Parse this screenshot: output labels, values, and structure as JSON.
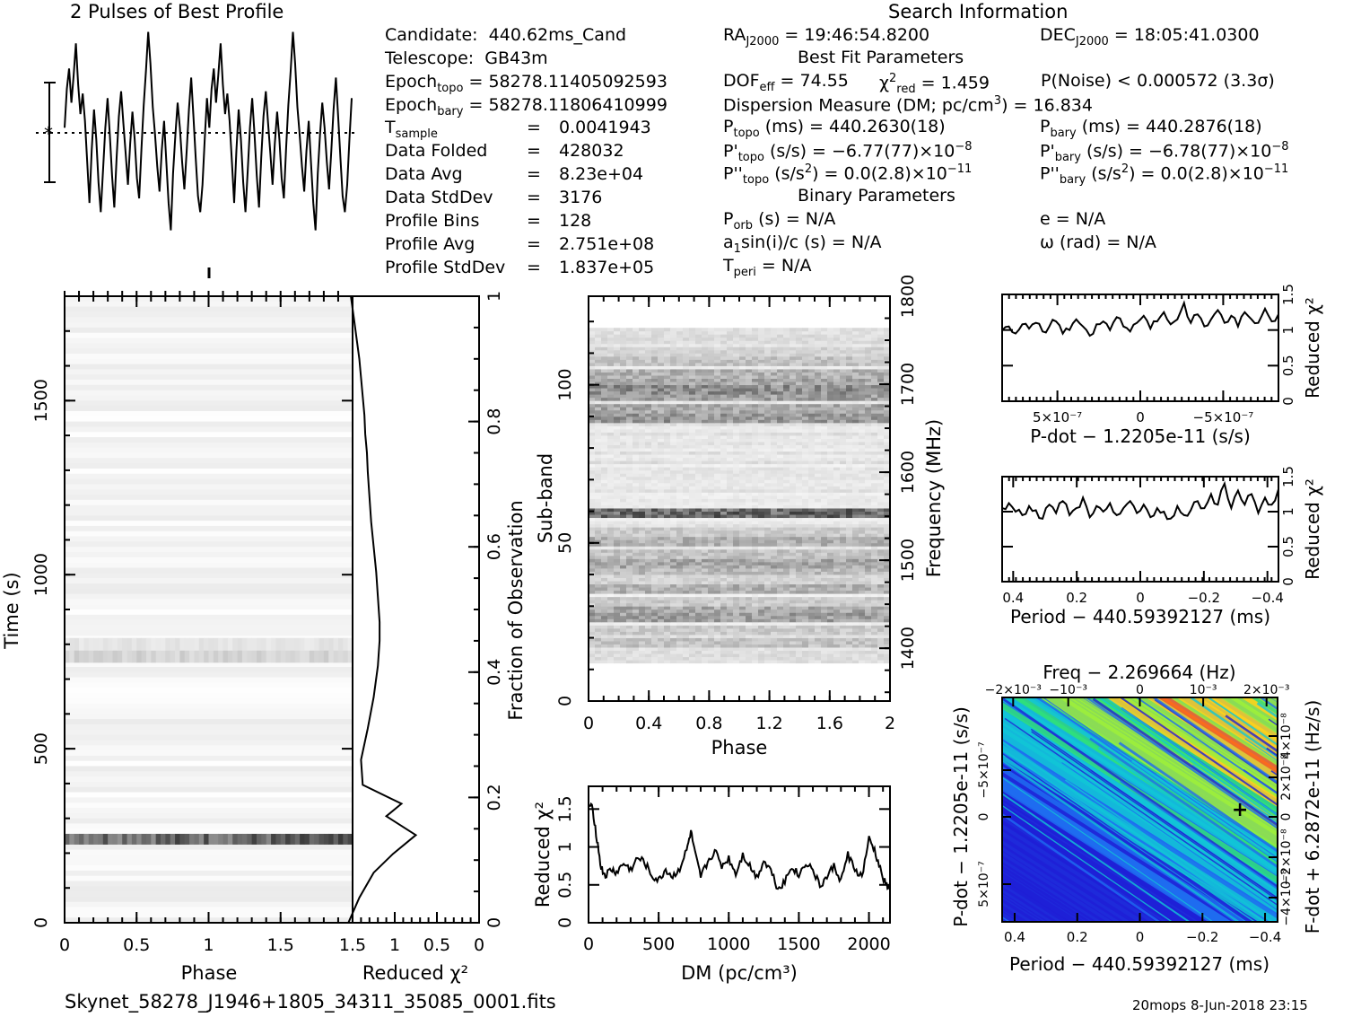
{
  "chart_data": [
    {
      "id": "profile",
      "type": "line",
      "title": "2 Pulses of Best Profile",
      "xlabel": "",
      "ylabel": "",
      "pulses": 2,
      "bins": 128,
      "values": [
        0.55,
        0.72,
        0.81,
        0.66,
        0.78,
        0.92,
        0.74,
        0.61,
        0.7,
        0.58,
        0.4,
        0.22,
        0.45,
        0.63,
        0.5,
        0.31,
        0.18,
        0.36,
        0.55,
        0.68,
        0.52,
        0.34,
        0.2,
        0.42,
        0.6,
        0.71,
        0.57,
        0.44,
        0.3,
        0.48,
        0.62,
        0.5,
        0.33,
        0.24,
        0.46,
        0.65,
        0.8,
        0.97,
        0.83,
        0.64,
        0.52,
        0.38,
        0.27,
        0.45,
        0.58,
        0.4,
        0.22,
        0.1,
        0.35,
        0.52,
        0.66,
        0.55,
        0.4,
        0.28,
        0.45,
        0.63,
        0.77,
        0.6,
        0.42,
        0.25,
        0.18,
        0.3,
        0.5,
        0.68
      ]
    },
    {
      "id": "time-phase",
      "type": "heatmap",
      "xlabel": "Phase",
      "ylabel": "Time (s)",
      "xlim": [
        0,
        2
      ],
      "ylim": [
        0,
        1800
      ],
      "xticks": [
        "0",
        "0.5",
        "1",
        "1.5"
      ],
      "yticks": [
        "0",
        "500",
        "1000",
        "1500"
      ],
      "dark_rows_s": [
        {
          "t": 240,
          "level": 0.9
        },
        {
          "t": 765,
          "level": 0.25
        },
        {
          "t": 800,
          "level": 0.15
        }
      ]
    },
    {
      "id": "reduced-chi2-vs-time",
      "type": "line",
      "xlabel": "Reduced χ²",
      "ylabel": "Fraction of Observation",
      "xlim": [
        1.5,
        0
      ],
      "ylim": [
        0,
        1
      ],
      "xticks": [
        "1.5",
        "1",
        "0.5",
        "0"
      ],
      "yticks": [
        "0",
        "0.2",
        "0.4",
        "0.6",
        "0.8",
        "1"
      ],
      "x": [
        1.55,
        1.42,
        1.25,
        1.02,
        0.75,
        1.1,
        0.92,
        1.38,
        1.4,
        1.32,
        1.25,
        1.2,
        1.18,
        1.18,
        1.2,
        1.22,
        1.25,
        1.28,
        1.3,
        1.32,
        1.33,
        1.35,
        1.36,
        1.38,
        1.4,
        1.42,
        1.45,
        1.48,
        1.5,
        1.52
      ],
      "y": [
        0.0,
        0.04,
        0.08,
        0.11,
        0.14,
        0.17,
        0.19,
        0.22,
        0.26,
        0.31,
        0.36,
        0.41,
        0.45,
        0.48,
        0.52,
        0.56,
        0.6,
        0.64,
        0.68,
        0.72,
        0.75,
        0.78,
        0.81,
        0.84,
        0.87,
        0.9,
        0.93,
        0.96,
        0.98,
        1.0
      ]
    },
    {
      "id": "subband-phase",
      "type": "heatmap",
      "xlabel": "Phase",
      "ylabel": "Sub-band",
      "ylabel_right": "Frequency (MHz)",
      "xlim": [
        0,
        2
      ],
      "ylim": [
        0,
        128
      ],
      "xticks": [
        "0",
        "0.4",
        "0.8",
        "1.2",
        "1.6",
        "2"
      ],
      "yticks": [
        "0",
        "50",
        "100"
      ],
      "yticks_right": [
        "1400",
        "1500",
        "1600",
        "1700",
        "1800"
      ],
      "bands": [
        [
          14,
          0.2
        ],
        [
          18,
          0.35
        ],
        [
          22,
          0.3
        ],
        [
          26,
          0.55
        ],
        [
          28,
          0.5
        ],
        [
          31,
          0.3
        ],
        [
          35,
          0.45
        ],
        [
          38,
          0.25
        ],
        [
          41,
          0.4
        ],
        [
          43,
          0.5
        ],
        [
          46,
          0.35
        ],
        [
          50,
          0.45
        ],
        [
          53,
          0.3
        ],
        [
          59,
          0.85
        ],
        [
          89,
          0.6
        ],
        [
          92,
          0.5
        ],
        [
          96,
          0.55
        ],
        [
          98,
          0.65
        ],
        [
          100,
          0.5
        ],
        [
          103,
          0.45
        ],
        [
          107,
          0.35
        ],
        [
          110,
          0.25
        ],
        [
          114,
          0.2
        ]
      ]
    },
    {
      "id": "dm-curve",
      "type": "line",
      "xlabel": "DM (pc/cm³)",
      "ylabel": "Reduced χ²",
      "xlim": [
        0,
        2150
      ],
      "ylim": [
        0,
        1.8
      ],
      "xticks": [
        "0",
        "500",
        "1000",
        "1500",
        "2000"
      ],
      "yticks": [
        "0",
        "0.5",
        "1",
        "1.5"
      ],
      "x": [
        0,
        30,
        60,
        90,
        120,
        160,
        200,
        250,
        300,
        350,
        400,
        450,
        500,
        550,
        600,
        650,
        700,
        730,
        760,
        800,
        850,
        900,
        950,
        1000,
        1050,
        1100,
        1150,
        1200,
        1250,
        1300,
        1350,
        1400,
        1450,
        1500,
        1550,
        1600,
        1650,
        1700,
        1750,
        1800,
        1850,
        1900,
        1950,
        2000,
        2040,
        2080,
        2120,
        2150
      ],
      "values": [
        1.55,
        1.5,
        1.1,
        0.72,
        0.62,
        0.7,
        0.66,
        0.78,
        0.7,
        0.85,
        0.8,
        0.62,
        0.55,
        0.7,
        0.6,
        0.72,
        0.95,
        1.2,
        0.9,
        0.6,
        0.8,
        0.95,
        0.75,
        0.85,
        0.65,
        0.9,
        0.75,
        0.6,
        0.82,
        0.7,
        0.45,
        0.55,
        0.75,
        0.62,
        0.8,
        0.7,
        0.48,
        0.6,
        0.75,
        0.55,
        0.9,
        0.7,
        0.6,
        1.1,
        0.95,
        0.7,
        0.5,
        0.45
      ]
    },
    {
      "id": "pdot-curve",
      "type": "line",
      "xlabel": "P-dot − 1.2205e-11 (s/s)",
      "ylabel": "Reduced χ²",
      "xticks": [
        "5×10⁻⁷",
        "0",
        "−5×10⁻⁷"
      ],
      "yticks": [
        "0",
        "0.5",
        "1",
        "1.5"
      ],
      "ylim": [
        0,
        1.5
      ],
      "values": [
        1.0,
        1.05,
        0.95,
        1.08,
        1.02,
        1.1,
        0.98,
        1.05,
        1.12,
        0.95,
        1.0,
        1.15,
        1.05,
        0.92,
        1.08,
        1.12,
        1.0,
        1.18,
        1.05,
        0.98,
        1.1,
        1.2,
        1.02,
        1.12,
        1.25,
        1.08,
        1.15,
        1.38,
        1.1,
        1.22,
        1.05,
        1.15,
        1.28,
        1.1,
        1.2,
        1.05,
        1.25,
        1.15,
        1.1,
        1.3,
        1.12,
        1.22
      ]
    },
    {
      "id": "period-curve",
      "type": "line",
      "xlabel": "Period − 440.59392127 (ms)",
      "ylabel": "Reduced χ²",
      "xticks": [
        "0.4",
        "0.2",
        "0",
        "−0.2",
        "−0.4"
      ],
      "yticks": [
        "0",
        "0.5",
        "1",
        "1.5"
      ],
      "ylim": [
        0,
        1.5
      ],
      "values": [
        1.05,
        1.12,
        1.0,
        0.95,
        1.08,
        1.02,
        0.9,
        1.1,
        0.98,
        1.15,
        0.95,
        1.05,
        1.2,
        0.92,
        1.08,
        1.0,
        1.12,
        0.95,
        1.05,
        1.15,
        0.98,
        1.1,
        0.92,
        1.05,
        1.0,
        0.9,
        1.08,
        0.95,
        1.02,
        1.15,
        1.05,
        1.25,
        1.1,
        1.4,
        1.05,
        1.3,
        1.1,
        1.25,
        0.98,
        1.2,
        1.1,
        1.32
      ]
    },
    {
      "id": "p-pdot-plane",
      "type": "heatmap",
      "title": "Freq − 2.269664 (Hz)",
      "xlabel": "Period − 440.59392127 (ms)",
      "ylabel": "P-dot − 1.2205e-11 (s/s)",
      "ylabel_right": "F-dot + 6.2872e-11 (Hz/s)",
      "xticks": [
        "0.4",
        "0.2",
        "0",
        "−0.2",
        "−0.4"
      ],
      "xticks_top": [
        "−2×10⁻³",
        "−10⁻³",
        "0",
        "10⁻³",
        "2×10⁻³"
      ],
      "yticks": [
        "−5×10⁻⁷",
        "0",
        "5×10⁻⁷"
      ],
      "yticks_right": [
        "4×10⁻⁸",
        "2×10⁻⁸",
        "0",
        "−2×10⁻⁸",
        "−4×10⁻⁸"
      ],
      "best": {
        "period": -0.32,
        "pdot": 0.0
      },
      "colors": [
        "#1f1fd6",
        "#1e6cf0",
        "#12c6d6",
        "#2fe07a",
        "#9ef03a",
        "#ffd21a",
        "#ff6a1a"
      ]
    }
  ],
  "info": {
    "candidate": [
      "Candidate:",
      "440.62ms_Cand"
    ],
    "telescope": [
      "Telescope:",
      "GB43m"
    ],
    "epoch_topo": [
      "Epoch",
      "topo",
      " = 58278.11405092593"
    ],
    "epoch_bary": [
      "Epoch",
      "bary",
      " = 58278.11806410999"
    ],
    "tsample": [
      "T",
      "sample",
      "=",
      "0.0041943"
    ],
    "rows": [
      [
        "Data Folded",
        "=",
        "428032"
      ],
      [
        "Data Avg",
        "=",
        "8.23e+04"
      ],
      [
        "Data StdDev",
        "=",
        "3176"
      ],
      [
        "Profile Bins",
        "=",
        "128"
      ],
      [
        "Profile Avg",
        "=",
        "2.751e+08"
      ],
      [
        "Profile StdDev",
        "=",
        "1.837e+05"
      ]
    ]
  },
  "search": {
    "title": "Search Information",
    "ra": [
      "RA",
      "J2000",
      " = 19:46:54.8200"
    ],
    "dec": [
      "DEC",
      "J2000",
      " = 18:05:41.0300"
    ],
    "best_fit": "Best Fit Parameters",
    "dof": [
      "DOF",
      "eff",
      " = 74.55"
    ],
    "chi": [
      "χ",
      "2",
      "red",
      " = 1.459"
    ],
    "pnoise": "P(Noise) < 0.000572   (3.3σ)",
    "dm": [
      "Dispersion Measure (DM; pc/cm",
      "3",
      ") = 16.834"
    ],
    "ptopo": [
      "P",
      "topo",
      " (ms) =  440.2630(18)"
    ],
    "pbary": [
      "P",
      "bary",
      " (ms) =  440.2876(18)"
    ],
    "pdtopo": [
      "P'",
      "topo",
      " (s/s) = −6.77(77)×10",
      "−8"
    ],
    "pdbary": [
      "P'",
      "bary",
      " (s/s) = −6.78(77)×10",
      "−8"
    ],
    "pddtopo": [
      "P''",
      "topo",
      " (s/s",
      "2",
      ") = 0.0(2.8)×10",
      "−11"
    ],
    "pddbary": [
      "P''",
      "bary",
      " (s/s",
      "2",
      ") = 0.0(2.8)×10",
      "−11"
    ],
    "binary": "Binary Parameters",
    "porb": [
      "P",
      "orb",
      " (s) = N/A"
    ],
    "e": "e = N/A",
    "asini": [
      "a",
      "1",
      "sin(i)/c (s) = N/A"
    ],
    "omega": "ω (rad) = N/A",
    "tperi": [
      "T",
      "peri",
      " = N/A"
    ]
  },
  "footer": {
    "filename": "Skynet_58278_J1946+1805_34311_35085_0001.fits",
    "stamp": "20mops  8-Jun-2018 23:15"
  }
}
